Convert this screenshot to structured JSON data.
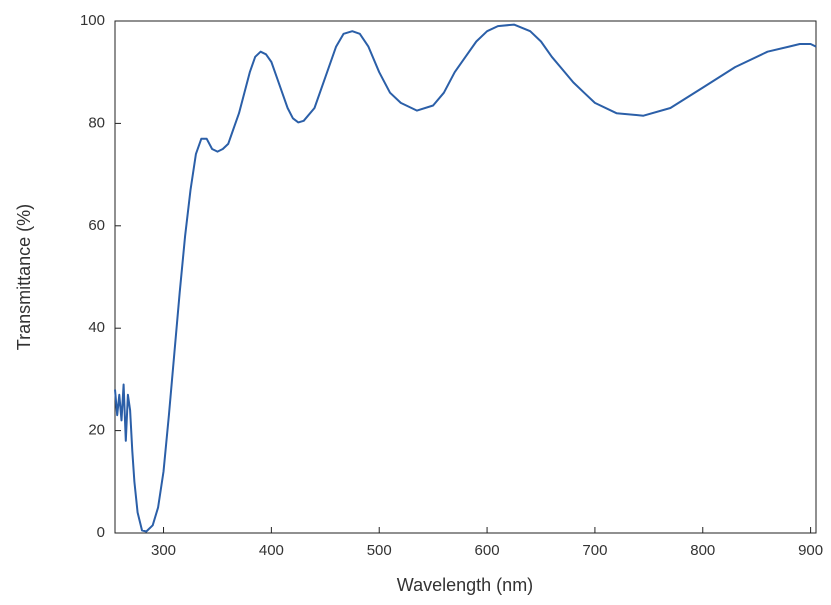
{
  "chart_data": {
    "type": "line",
    "x_label": "Wavelength (nm)",
    "y_label": "Transmittance (%)",
    "xlim": [
      255,
      905
    ],
    "ylim": [
      0,
      100
    ],
    "xticks": [
      300,
      400,
      500,
      600,
      700,
      800,
      900
    ],
    "yticks": [
      0,
      20,
      40,
      60,
      80,
      100
    ],
    "series": [
      {
        "color": "#2b5fa8",
        "x": [
          255,
          257,
          259,
          261,
          263,
          265,
          267,
          269,
          271,
          273,
          276,
          280,
          284,
          290,
          295,
          300,
          305,
          310,
          315,
          320,
          325,
          330,
          335,
          340,
          345,
          350,
          355,
          360,
          365,
          370,
          375,
          380,
          385,
          390,
          395,
          400,
          405,
          410,
          415,
          420,
          425,
          430,
          440,
          450,
          460,
          467,
          475,
          482,
          490,
          500,
          510,
          520,
          535,
          550,
          560,
          570,
          580,
          590,
          600,
          610,
          625,
          640,
          650,
          660,
          670,
          680,
          690,
          700,
          720,
          745,
          770,
          800,
          830,
          860,
          880,
          890,
          900,
          905
        ],
        "values": [
          28,
          23,
          27,
          22,
          29,
          18,
          27,
          24,
          16,
          10,
          4,
          0.5,
          0.3,
          1.5,
          5,
          12,
          23,
          35,
          47,
          58,
          67,
          74,
          77,
          77,
          75,
          74.5,
          75,
          76,
          79,
          82,
          86,
          90,
          93,
          94,
          93.5,
          92,
          89,
          86,
          83,
          81,
          80.2,
          80.5,
          83,
          89,
          95,
          97.5,
          98,
          97.5,
          95,
          90,
          86,
          84,
          82.5,
          83.5,
          86,
          90,
          93,
          96,
          98,
          99,
          99.3,
          98,
          96,
          93,
          90.5,
          88,
          86,
          84,
          82,
          81.5,
          83,
          87,
          91,
          94,
          95,
          95.5,
          95.5,
          95
        ]
      }
    ]
  }
}
